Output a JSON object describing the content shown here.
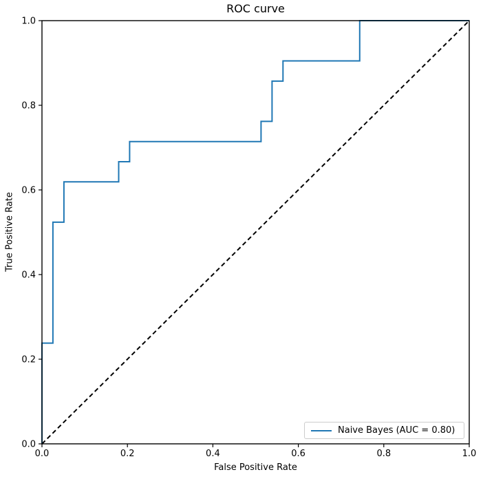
{
  "figure": {
    "background": "#ffffff",
    "text_color": "#000000"
  },
  "chart_data": {
    "type": "line",
    "title": "ROC curve",
    "xlabel": "False Positive Rate",
    "ylabel": "True Positive Rate",
    "xlim": [
      0.0,
      1.0
    ],
    "ylim": [
      0.0,
      1.0
    ],
    "grid": false,
    "x_ticks": {
      "values": [
        0.0,
        0.2,
        0.4,
        0.6,
        0.8,
        1.0
      ],
      "labels": [
        "0.0",
        "0.2",
        "0.4",
        "0.6",
        "0.8",
        "1.0"
      ]
    },
    "y_ticks": {
      "values": [
        0.0,
        0.2,
        0.4,
        0.6,
        0.8,
        1.0
      ],
      "labels": [
        "0.0",
        "0.2",
        "0.4",
        "0.6",
        "0.8",
        "1.0"
      ]
    },
    "series": [
      {
        "name": "chance-diagonal",
        "style": "dashed",
        "color": "#000000",
        "points": [
          [
            0.0,
            0.0
          ],
          [
            1.0,
            1.0
          ]
        ]
      },
      {
        "name": "Naive Bayes (AUC = 0.80)",
        "style": "solid",
        "color": "#1f77b4",
        "auc": 0.8,
        "points": [
          [
            0.0,
            0.0
          ],
          [
            0.0,
            0.2381
          ],
          [
            0.0256,
            0.2381
          ],
          [
            0.0256,
            0.5238
          ],
          [
            0.0513,
            0.5238
          ],
          [
            0.0513,
            0.619
          ],
          [
            0.1795,
            0.619
          ],
          [
            0.1795,
            0.6667
          ],
          [
            0.2051,
            0.6667
          ],
          [
            0.2051,
            0.7143
          ],
          [
            0.5128,
            0.7143
          ],
          [
            0.5128,
            0.7619
          ],
          [
            0.5385,
            0.7619
          ],
          [
            0.5385,
            0.8571
          ],
          [
            0.5641,
            0.8571
          ],
          [
            0.5641,
            0.9048
          ],
          [
            0.7436,
            0.9048
          ],
          [
            0.7436,
            1.0
          ],
          [
            1.0,
            1.0
          ]
        ]
      }
    ],
    "legend": {
      "position": "lower right",
      "entries": [
        {
          "label": "Naive Bayes (AUC = 0.80)",
          "color": "#1f77b4"
        }
      ]
    }
  }
}
